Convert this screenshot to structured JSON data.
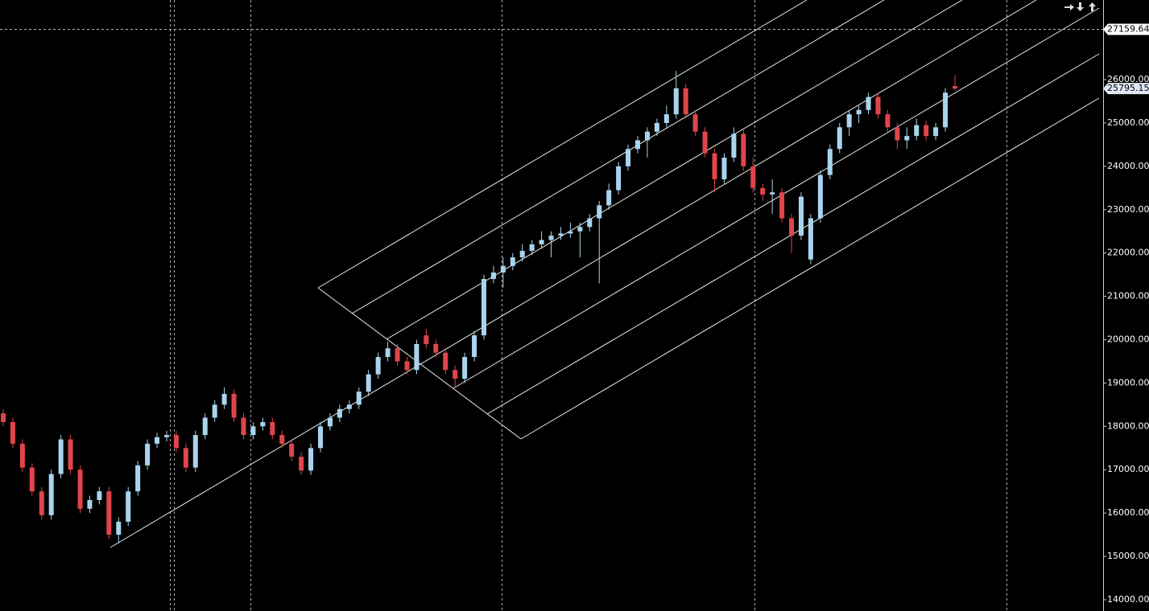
{
  "chart_data": {
    "type": "candlestick",
    "open": [
      18300,
      18100,
      17600,
      17050,
      16500,
      15950,
      16900,
      17700,
      17000,
      16100,
      16300,
      16500,
      15500,
      15800,
      16500,
      17100,
      17600,
      17750,
      17800,
      17500,
      17050,
      17800,
      18200,
      18500,
      18750,
      18200,
      17800,
      18000,
      18100,
      17800,
      17600,
      17300,
      16980,
      17500,
      18000,
      18200,
      18400,
      18500,
      18800,
      19200,
      19600,
      19800,
      19500,
      19300,
      20100,
      19900,
      19700,
      19300,
      19100,
      19600,
      20100,
      21400,
      21550,
      21700,
      21900,
      22050,
      22200,
      22300,
      22400,
      22450,
      22500,
      22600,
      22800,
      23100,
      23450,
      24000,
      24400,
      24600,
      24800,
      25000,
      25200,
      25800,
      25200,
      24800,
      24300,
      23700,
      24200,
      24750,
      24000,
      23500,
      23350,
      23400,
      22800,
      22400,
      21850,
      22800,
      23800,
      24400,
      24900,
      25200,
      25300,
      25600,
      25200,
      24900,
      24600,
      24700,
      24950,
      24700,
      24900,
      25850
    ],
    "high": [
      18400,
      18200,
      17700,
      17150,
      16600,
      17000,
      17800,
      17800,
      17100,
      16400,
      16600,
      16600,
      15900,
      16600,
      17200,
      17700,
      17850,
      17900,
      17900,
      17600,
      17900,
      18300,
      18600,
      18900,
      18850,
      18300,
      18100,
      18200,
      18200,
      17900,
      17700,
      17400,
      17600,
      18100,
      18300,
      18500,
      18600,
      18900,
      19300,
      19700,
      19950,
      19900,
      19600,
      20000,
      20250,
      20000,
      19800,
      19400,
      19700,
      20200,
      21500,
      21700,
      21900,
      22000,
      22200,
      22300,
      22500,
      22500,
      22600,
      22700,
      22700,
      22900,
      23200,
      23600,
      24100,
      24500,
      24700,
      24900,
      25100,
      25400,
      26200,
      25900,
      25300,
      24900,
      24400,
      24300,
      24900,
      24850,
      24200,
      23600,
      23700,
      23500,
      22900,
      23400,
      22900,
      23900,
      24500,
      25000,
      25300,
      25400,
      25700,
      25700,
      25300,
      25000,
      24900,
      25100,
      25050,
      25000,
      25800,
      26100
    ],
    "low": [
      18000,
      17500,
      16950,
      16400,
      15850,
      15850,
      16800,
      16900,
      16000,
      16000,
      16200,
      15400,
      15300,
      15700,
      16400,
      17000,
      17500,
      17650,
      17400,
      16950,
      16950,
      17700,
      18100,
      18400,
      18100,
      17700,
      17700,
      17900,
      17700,
      17500,
      17200,
      16880,
      16880,
      17400,
      17900,
      18100,
      18300,
      18400,
      18700,
      19100,
      19500,
      19400,
      19200,
      19200,
      19800,
      19600,
      19200,
      18900,
      19000,
      19500,
      20000,
      21300,
      21200,
      21600,
      21800,
      21950,
      22100,
      21900,
      22300,
      22350,
      21900,
      22500,
      21300,
      23000,
      23350,
      23900,
      24300,
      24200,
      24700,
      24900,
      25100,
      25100,
      24700,
      24200,
      23400,
      23600,
      24100,
      23900,
      23400,
      23200,
      22900,
      22700,
      22000,
      22300,
      21750,
      22700,
      23700,
      24300,
      24700,
      25000,
      25200,
      25100,
      24800,
      24400,
      24400,
      24600,
      24600,
      24600,
      24800,
      25750
    ],
    "close": [
      18100,
      17600,
      17050,
      16500,
      15950,
      16900,
      17700,
      17000,
      16100,
      16300,
      16500,
      15500,
      15800,
      16500,
      17100,
      17600,
      17750,
      17800,
      17500,
      17050,
      17800,
      18200,
      18500,
      18750,
      18200,
      17800,
      18000,
      18100,
      17800,
      17600,
      17300,
      16980,
      17500,
      18000,
      18200,
      18400,
      18500,
      18800,
      19200,
      19600,
      19800,
      19500,
      19300,
      19900,
      19900,
      19700,
      19300,
      19100,
      19600,
      20100,
      21400,
      21550,
      21700,
      21900,
      22050,
      22200,
      22300,
      22400,
      22450,
      22500,
      22600,
      22800,
      23100,
      23450,
      24000,
      24400,
      24600,
      24800,
      25000,
      25200,
      25800,
      25200,
      24800,
      24300,
      23700,
      24200,
      24750,
      24000,
      23500,
      23350,
      23400,
      22800,
      22400,
      23300,
      22800,
      23800,
      24400,
      24900,
      25200,
      25300,
      25600,
      25200,
      24900,
      24600,
      24700,
      24950,
      24700,
      24900,
      25700,
      25795.15
    ],
    "up_color": "#a9d4ee",
    "down_color": "#e0454b",
    "ylim": [
      13740,
      27837
    ],
    "yticks": [
      {
        "value": 14000,
        "label": "14000.00"
      },
      {
        "value": 15000,
        "label": "15000.00"
      },
      {
        "value": 16000,
        "label": "16000.00"
      },
      {
        "value": 17000,
        "label": "17000.00"
      },
      {
        "value": 18000,
        "label": "18000.00"
      },
      {
        "value": 19000,
        "label": "19000.00"
      },
      {
        "value": 20000,
        "label": "20000.00"
      },
      {
        "value": 21000,
        "label": "21000.00"
      },
      {
        "value": 22000,
        "label": "22000.00"
      },
      {
        "value": 23000,
        "label": "23000.00"
      },
      {
        "value": 24000,
        "label": "24000.00"
      },
      {
        "value": 25000,
        "label": "25000.00"
      },
      {
        "value": 26000,
        "label": "26000.00"
      }
    ],
    "price_line": 27159.64,
    "last_price": 25795.15
  }
}
